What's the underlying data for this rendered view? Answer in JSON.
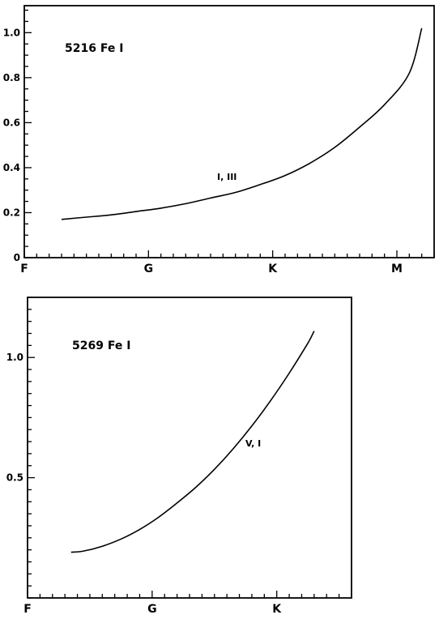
{
  "chart_data": [
    {
      "type": "line",
      "title": "5216 Fe I",
      "x_categories": [
        "F",
        "G",
        "K",
        "M"
      ],
      "x_domain": [
        0,
        3.3
      ],
      "x_minor_per_major": 10,
      "y_ticks": [
        0,
        0.2,
        0.4,
        0.6,
        0.8,
        1.0
      ],
      "y_ticklabels": [
        "0",
        "0.2",
        "0.4",
        "0.6",
        "0.8",
        "1.0"
      ],
      "ylim": [
        0,
        1.12
      ],
      "y_minor_step": 0.05,
      "series": [
        {
          "name": "I, III",
          "x": [
            0.3,
            0.5,
            0.7,
            0.9,
            1.1,
            1.3,
            1.5,
            1.7,
            1.9,
            2.1,
            2.3,
            2.5,
            2.7,
            2.9,
            3.1,
            3.2
          ],
          "y": [
            0.17,
            0.18,
            0.19,
            0.205,
            0.22,
            0.24,
            0.265,
            0.29,
            0.325,
            0.365,
            0.42,
            0.49,
            0.58,
            0.68,
            0.82,
            1.02
          ]
        }
      ]
    },
    {
      "type": "line",
      "title": "5269 Fe I",
      "x_categories": [
        "F",
        "G",
        "K"
      ],
      "x_domain": [
        0,
        2.6
      ],
      "x_minor_per_major": 10,
      "y_ticks": [
        0.5,
        1.0
      ],
      "y_ticklabels": [
        "0.5",
        "1.0"
      ],
      "ylim": [
        0,
        1.25
      ],
      "y_minor_step": 0.05,
      "series": [
        {
          "name": "V, I",
          "x": [
            0.35,
            0.45,
            0.6,
            0.75,
            0.9,
            1.05,
            1.2,
            1.35,
            1.5,
            1.65,
            1.8,
            1.95,
            2.1,
            2.25,
            2.3
          ],
          "y": [
            0.19,
            0.195,
            0.215,
            0.245,
            0.285,
            0.335,
            0.395,
            0.46,
            0.535,
            0.62,
            0.715,
            0.82,
            0.935,
            1.06,
            1.11
          ]
        }
      ]
    }
  ]
}
